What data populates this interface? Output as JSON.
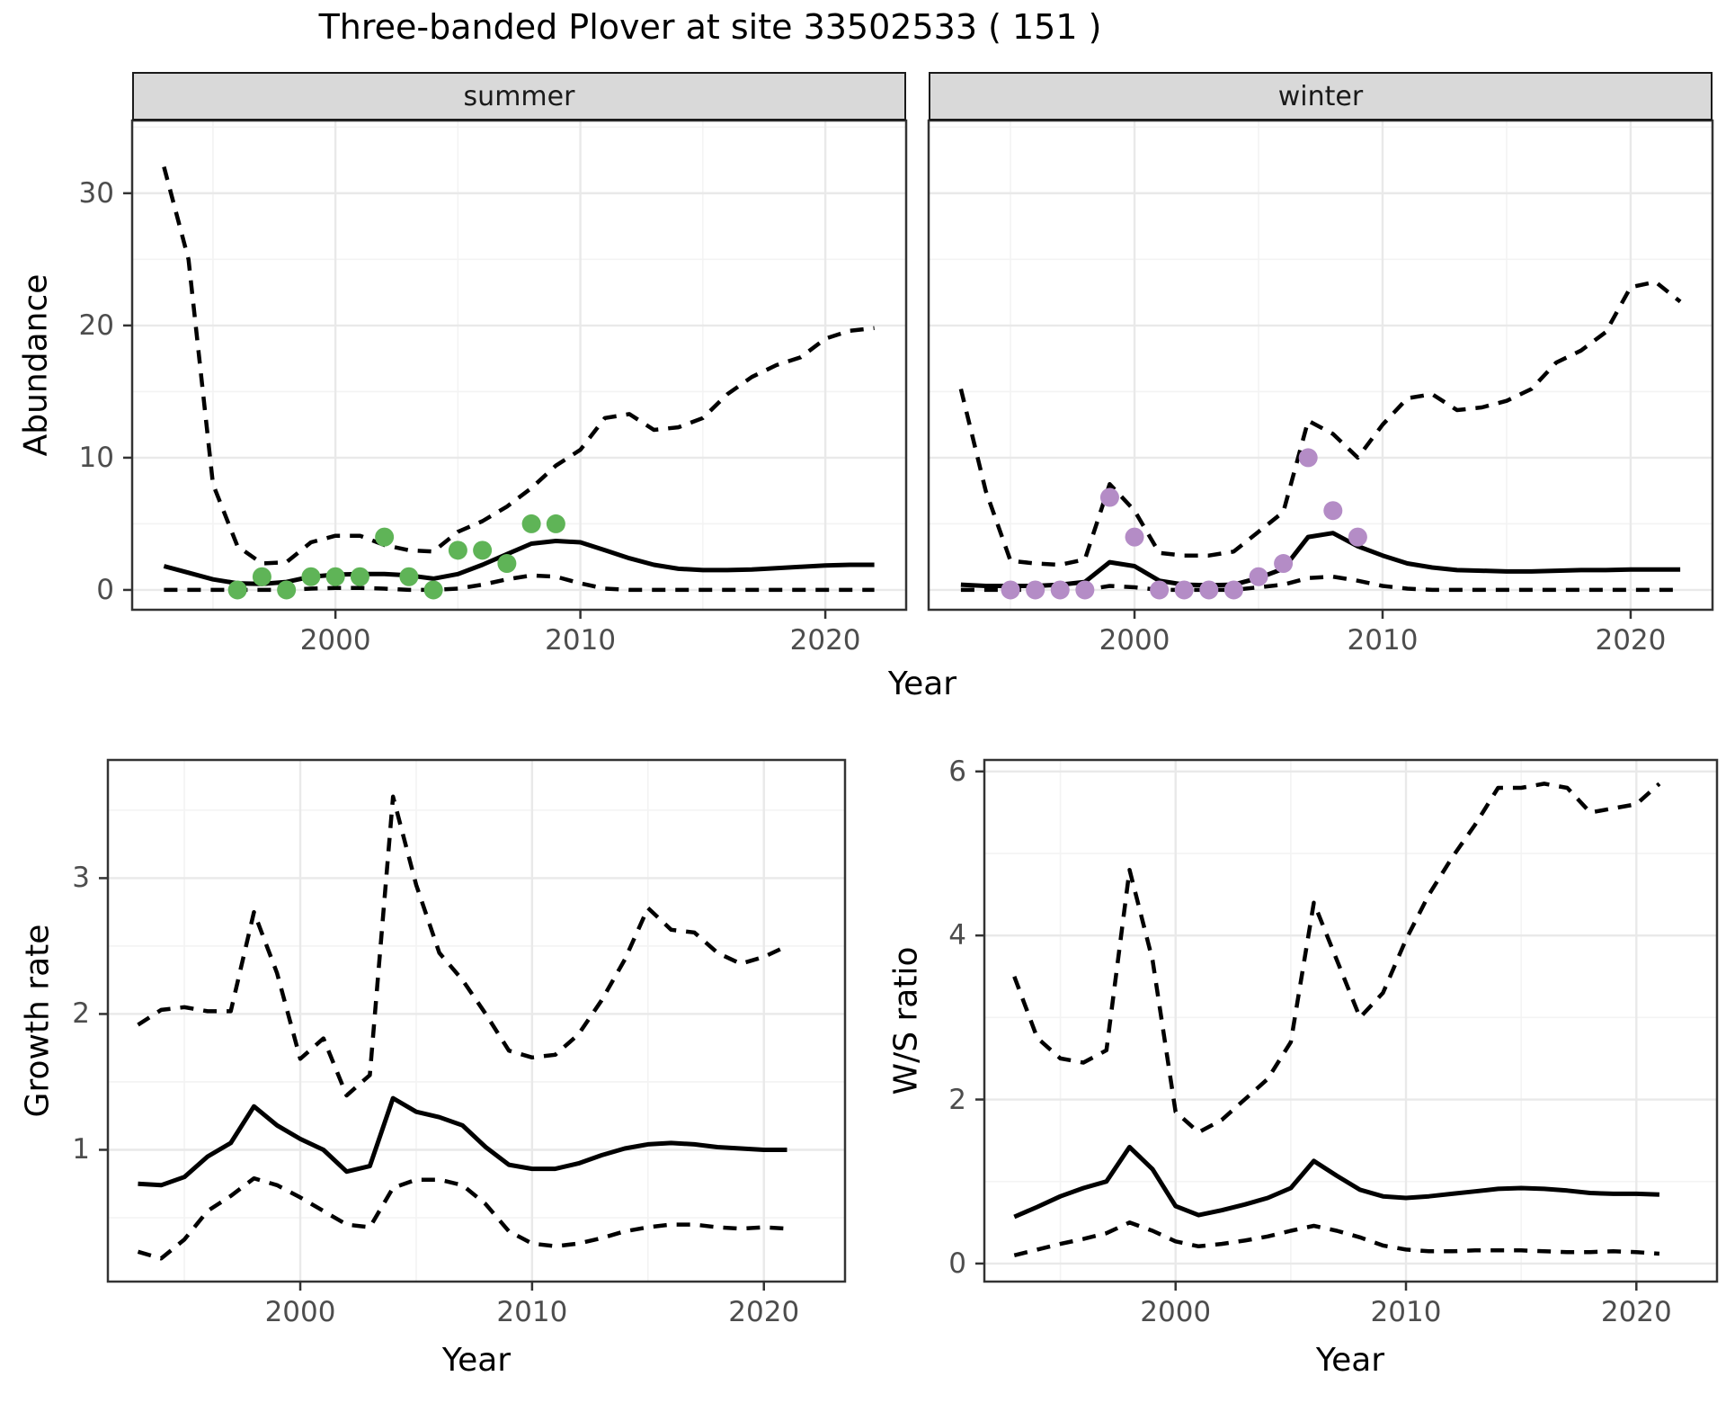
{
  "title": "Three-banded Plover at site 33502533 ( 151 )",
  "facets": {
    "summer": "summer",
    "winter": "winter"
  },
  "axes": {
    "abundance_label": "Abundance",
    "year_label_top": "Year",
    "growth_label": "Growth rate",
    "ws_label": "W/S ratio",
    "year_label_bottom_left": "Year",
    "year_label_bottom_right": "Year"
  },
  "colors": {
    "summer_points": "#5fb457",
    "winter_points": "#b48cc6",
    "line": "#000000",
    "strip_bg": "#d9d9d9",
    "grid_major": "#e9e9e9",
    "grid_minor": "#f3f3f3",
    "panel_border": "#333333",
    "tick_text": "#4d4d4d"
  },
  "chart_data": [
    {
      "name": "abundance-summer",
      "type": "line",
      "facet": "summer",
      "title": "summer",
      "xlabel": "Year",
      "ylabel": "Abundance",
      "xlim": [
        1991.7,
        2023.3
      ],
      "ylim": [
        -1.5,
        35.5
      ],
      "xticks": [
        2000,
        2010,
        2020
      ],
      "xminor": [
        1995,
        2005,
        2015
      ],
      "yticks": [
        0,
        10,
        20,
        30
      ],
      "yminor": [
        5,
        15,
        25,
        35
      ],
      "x": [
        1993,
        1994,
        1995,
        1996,
        1997,
        1998,
        1999,
        2000,
        2001,
        2002,
        2003,
        2004,
        2005,
        2006,
        2007,
        2008,
        2009,
        2010,
        2011,
        2012,
        2013,
        2014,
        2015,
        2016,
        2017,
        2018,
        2019,
        2020,
        2021,
        2022
      ],
      "series": [
        {
          "name": "median",
          "style": "solid",
          "values": [
            1.8,
            1.3,
            0.8,
            0.5,
            0.45,
            0.6,
            1.0,
            1.15,
            1.2,
            1.2,
            1.1,
            0.85,
            1.2,
            1.9,
            2.7,
            3.5,
            3.7,
            3.6,
            3.0,
            2.4,
            1.9,
            1.6,
            1.5,
            1.5,
            1.55,
            1.65,
            1.75,
            1.85,
            1.9,
            1.9
          ]
        },
        {
          "name": "upper_ci",
          "style": "dashed",
          "values": [
            32,
            25,
            8,
            3.3,
            2.0,
            2.1,
            3.6,
            4.1,
            4.1,
            3.4,
            3.0,
            2.9,
            4.4,
            5.2,
            6.3,
            7.7,
            9.4,
            10.6,
            13.0,
            13.3,
            12.1,
            12.3,
            13.0,
            14.8,
            16.1,
            17.0,
            17.6,
            19.0,
            19.6,
            19.8
          ]
        },
        {
          "name": "lower_ci",
          "style": "dashed",
          "values": [
            0,
            0,
            0,
            0,
            0,
            0,
            0.1,
            0.15,
            0.15,
            0.1,
            0,
            0,
            0.1,
            0.4,
            0.8,
            1.1,
            1.0,
            0.5,
            0.1,
            0,
            0,
            0,
            0,
            0,
            0,
            0,
            0,
            0,
            0,
            0
          ]
        }
      ],
      "points": {
        "name": "observed-counts",
        "color_key": "summer_points",
        "years": [
          1996,
          1997,
          1998,
          1999,
          2000,
          2001,
          2002,
          2003,
          2004,
          2005,
          2006,
          2007,
          2008,
          2009
        ],
        "values": [
          0,
          1,
          0,
          1,
          1,
          1,
          4,
          1,
          0,
          3,
          3,
          2,
          5,
          5
        ]
      }
    },
    {
      "name": "abundance-winter",
      "type": "line",
      "facet": "winter",
      "title": "winter",
      "xlabel": "Year",
      "ylabel": "Abundance",
      "xlim": [
        1991.7,
        2023.3
      ],
      "ylim": [
        -1.5,
        35.5
      ],
      "xticks": [
        2000,
        2010,
        2020
      ],
      "xminor": [
        1995,
        2005,
        2015
      ],
      "yticks": [
        0,
        10,
        20,
        30
      ],
      "yminor": [
        5,
        15,
        25,
        35
      ],
      "x": [
        1993,
        1994,
        1995,
        1996,
        1997,
        1998,
        1999,
        2000,
        2001,
        2002,
        2003,
        2004,
        2005,
        2006,
        2007,
        2008,
        2009,
        2010,
        2011,
        2012,
        2013,
        2014,
        2015,
        2016,
        2017,
        2018,
        2019,
        2020,
        2021,
        2022
      ],
      "series": [
        {
          "name": "median",
          "style": "solid",
          "values": [
            0.4,
            0.3,
            0.3,
            0.3,
            0.4,
            0.6,
            2.1,
            1.8,
            0.7,
            0.4,
            0.35,
            0.4,
            0.9,
            1.6,
            4.0,
            4.3,
            3.3,
            2.6,
            2.0,
            1.7,
            1.5,
            1.45,
            1.4,
            1.4,
            1.45,
            1.5,
            1.5,
            1.55,
            1.55,
            1.55
          ]
        },
        {
          "name": "upper_ci",
          "style": "dashed",
          "values": [
            15.2,
            7.5,
            2.2,
            2.0,
            1.9,
            2.3,
            8.0,
            6.0,
            2.8,
            2.6,
            2.6,
            2.9,
            4.4,
            5.9,
            12.8,
            11.8,
            10.0,
            12.5,
            14.5,
            14.8,
            13.6,
            13.8,
            14.3,
            15.2,
            17.2,
            18.1,
            19.5,
            22.9,
            23.3,
            21.8
          ]
        },
        {
          "name": "lower_ci",
          "style": "dashed",
          "values": [
            0,
            0,
            0,
            0,
            0,
            0,
            0.3,
            0.2,
            0,
            0,
            0,
            0,
            0.2,
            0.4,
            0.9,
            1.0,
            0.7,
            0.3,
            0.1,
            0,
            0,
            0,
            0,
            0,
            0,
            0,
            0,
            0,
            0,
            0
          ]
        }
      ],
      "points": {
        "name": "observed-counts",
        "color_key": "winter_points",
        "years": [
          1995,
          1996,
          1997,
          1998,
          1999,
          2000,
          2001,
          2002,
          2003,
          2004,
          2005,
          2006,
          2007,
          2008,
          2009
        ],
        "values": [
          0,
          0,
          0,
          0,
          7,
          4,
          0,
          0,
          0,
          0,
          1,
          2,
          10,
          6,
          4
        ]
      }
    },
    {
      "name": "growth-rate",
      "type": "line",
      "facet": null,
      "title": "",
      "xlabel": "Year",
      "ylabel": "Growth rate",
      "xlim": [
        1991.7,
        2023.5
      ],
      "ylim": [
        0.03,
        3.87
      ],
      "xticks": [
        2000,
        2010,
        2020
      ],
      "xminor": [
        1995,
        2005,
        2015
      ],
      "yticks": [
        1,
        2,
        3
      ],
      "yminor": [
        0.5,
        1.5,
        2.5,
        3.5
      ],
      "x": [
        1993,
        1994,
        1995,
        1996,
        1997,
        1998,
        1999,
        2000,
        2001,
        2002,
        2003,
        2004,
        2005,
        2006,
        2007,
        2008,
        2009,
        2010,
        2011,
        2012,
        2013,
        2014,
        2015,
        2016,
        2017,
        2018,
        2019,
        2020,
        2021
      ],
      "series": [
        {
          "name": "median",
          "style": "solid",
          "values": [
            0.75,
            0.74,
            0.8,
            0.95,
            1.05,
            1.32,
            1.18,
            1.08,
            1.0,
            0.84,
            0.88,
            1.38,
            1.28,
            1.24,
            1.18,
            1.02,
            0.89,
            0.86,
            0.86,
            0.9,
            0.96,
            1.01,
            1.04,
            1.05,
            1.04,
            1.02,
            1.01,
            1.0,
            1.0
          ]
        },
        {
          "name": "upper_ci",
          "style": "dashed",
          "values": [
            1.92,
            2.03,
            2.05,
            2.02,
            2.02,
            2.75,
            2.3,
            1.67,
            1.82,
            1.4,
            1.55,
            3.6,
            2.95,
            2.45,
            2.25,
            2.0,
            1.73,
            1.68,
            1.7,
            1.85,
            2.1,
            2.4,
            2.78,
            2.62,
            2.6,
            2.45,
            2.37,
            2.42,
            2.5
          ]
        },
        {
          "name": "lower_ci",
          "style": "dashed",
          "values": [
            0.25,
            0.2,
            0.34,
            0.55,
            0.66,
            0.79,
            0.74,
            0.65,
            0.55,
            0.45,
            0.43,
            0.72,
            0.78,
            0.78,
            0.74,
            0.6,
            0.4,
            0.31,
            0.29,
            0.31,
            0.35,
            0.4,
            0.43,
            0.45,
            0.45,
            0.43,
            0.42,
            0.43,
            0.42
          ]
        }
      ],
      "points": null
    },
    {
      "name": "ws-ratio",
      "type": "line",
      "facet": null,
      "title": "",
      "xlabel": "Year",
      "ylabel": "W/S ratio",
      "xlim": [
        1991.7,
        2023.5
      ],
      "ylim": [
        -0.22,
        6.14
      ],
      "xticks": [
        2000,
        2010,
        2020
      ],
      "xminor": [
        1995,
        2005,
        2015
      ],
      "yticks": [
        0,
        2,
        4,
        6
      ],
      "yminor": [
        1,
        3,
        5
      ],
      "x": [
        1993,
        1994,
        1995,
        1996,
        1997,
        1998,
        1999,
        2000,
        2001,
        2002,
        2003,
        2004,
        2005,
        2006,
        2007,
        2008,
        2009,
        2010,
        2011,
        2012,
        2013,
        2014,
        2015,
        2016,
        2017,
        2018,
        2019,
        2020,
        2021
      ],
      "series": [
        {
          "name": "median",
          "style": "solid",
          "values": [
            0.57,
            0.69,
            0.82,
            0.92,
            1.0,
            1.42,
            1.15,
            0.7,
            0.59,
            0.65,
            0.72,
            0.8,
            0.92,
            1.25,
            1.07,
            0.9,
            0.82,
            0.8,
            0.82,
            0.85,
            0.88,
            0.91,
            0.92,
            0.91,
            0.89,
            0.86,
            0.85,
            0.85,
            0.84
          ]
        },
        {
          "name": "upper_ci",
          "style": "dashed",
          "values": [
            3.5,
            2.75,
            2.5,
            2.45,
            2.6,
            4.8,
            3.7,
            1.85,
            1.6,
            1.75,
            2.0,
            2.25,
            2.7,
            4.4,
            3.7,
            3.0,
            3.3,
            3.95,
            4.5,
            4.95,
            5.35,
            5.8,
            5.8,
            5.85,
            5.8,
            5.5,
            5.55,
            5.6,
            5.85
          ]
        },
        {
          "name": "lower_ci",
          "style": "dashed",
          "values": [
            0.1,
            0.17,
            0.24,
            0.3,
            0.37,
            0.5,
            0.4,
            0.27,
            0.21,
            0.24,
            0.28,
            0.33,
            0.4,
            0.46,
            0.4,
            0.32,
            0.22,
            0.17,
            0.15,
            0.15,
            0.16,
            0.16,
            0.16,
            0.15,
            0.14,
            0.14,
            0.15,
            0.14,
            0.12
          ]
        }
      ],
      "points": null
    }
  ]
}
